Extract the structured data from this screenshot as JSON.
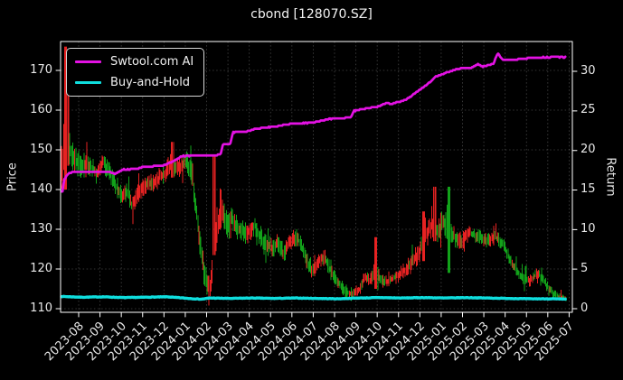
{
  "chart_data": {
    "type": "mixed",
    "title": "cbond [128070.SZ]",
    "grid": true,
    "legend_position": "upper left",
    "background": "#000000",
    "x_axis": {
      "tick_labels": [
        "2023-08",
        "2023-09",
        "2023-10",
        "2023-11",
        "2023-12",
        "2024-01",
        "2024-02",
        "2024-03",
        "2024-04",
        "2024-05",
        "2024-06",
        "2024-07",
        "2024-08",
        "2024-09",
        "2024-10",
        "2024-11",
        "2024-12",
        "2025-01",
        "2025-02",
        "2025-03",
        "2025-04",
        "2025-05",
        "2025-06",
        "2025-07"
      ]
    },
    "left_axis": {
      "label": "Price",
      "ticks": [
        110,
        120,
        130,
        140,
        150,
        160,
        170
      ],
      "range": [
        109.1,
        177.5
      ]
    },
    "right_axis": {
      "label": "Return",
      "ticks": [
        0,
        5,
        10,
        15,
        20,
        25,
        30
      ],
      "range": [
        -0.5,
        33.8
      ]
    },
    "series": [
      {
        "name": "price-daily-bars",
        "axis": "left",
        "type": "bars",
        "color_up": "#e62222",
        "color_down": "#12a21a",
        "monthly_summary": {
          "months": [
            "2023-08",
            "2023-09",
            "2023-10",
            "2023-11",
            "2023-12",
            "2024-01",
            "2024-02",
            "2024-03",
            "2024-04",
            "2024-05",
            "2024-06",
            "2024-07",
            "2024-08",
            "2024-09",
            "2024-10",
            "2024-11",
            "2024-12",
            "2025-01",
            "2025-02",
            "2025-03",
            "2025-04",
            "2025-05",
            "2025-06",
            "2025-07"
          ],
          "low": [
            139,
            141,
            134,
            133,
            138,
            131,
            113,
            124,
            125,
            123,
            117,
            121,
            115,
            111.5,
            112,
            114,
            117,
            119,
            123,
            124,
            116,
            114,
            111.8,
            112
          ],
          "high": [
            176,
            151,
            150,
            145,
            147,
            152,
            149,
            141,
            137,
            133,
            132,
            131,
            126,
            120,
            128,
            122,
            136,
            141,
            134,
            131,
            129,
            123,
            118,
            114
          ],
          "close": [
            146,
            145,
            139,
            141,
            143,
            135,
            129,
            131,
            129,
            126,
            124,
            123,
            117,
            113,
            117,
            118,
            126,
            128,
            128,
            127,
            120,
            117,
            113,
            112.5
          ]
        },
        "render": {
          "bars_total": 497,
          "m_start": 0.045,
          "m_end": 23.7,
          "mid_path": [
            [
              0,
              143
            ],
            [
              0.15,
              150
            ],
            [
              0.25,
              158
            ],
            [
              0.45,
              150
            ],
            [
              0.7,
              147
            ],
            [
              1.0,
              146
            ],
            [
              1.4,
              146
            ],
            [
              1.7,
              144
            ],
            [
              2.0,
              147
            ],
            [
              2.3,
              144
            ],
            [
              2.6,
              141
            ],
            [
              2.9,
              138
            ],
            [
              3.1,
              140
            ],
            [
              3.35,
              136
            ],
            [
              3.6,
              139
            ],
            [
              3.9,
              141
            ],
            [
              4.4,
              142
            ],
            [
              4.9,
              144
            ],
            [
              5.2,
              147
            ],
            [
              5.5,
              145
            ],
            [
              5.9,
              148
            ],
            [
              6.15,
              144
            ],
            [
              6.35,
              135
            ],
            [
              6.55,
              126
            ],
            [
              6.75,
              118
            ],
            [
              6.95,
              114.5
            ],
            [
              7.1,
              119
            ],
            [
              7.25,
              127
            ],
            [
              7.4,
              131
            ],
            [
              7.6,
              134
            ],
            [
              7.8,
              131
            ],
            [
              8.0,
              133
            ],
            [
              8.3,
              130
            ],
            [
              8.7,
              129
            ],
            [
              9.1,
              131
            ],
            [
              9.4,
              128
            ],
            [
              9.7,
              126
            ],
            [
              10.0,
              125
            ],
            [
              10.15,
              127
            ],
            [
              10.45,
              124
            ],
            [
              10.8,
              127
            ],
            [
              11.1,
              128
            ],
            [
              11.5,
              123
            ],
            [
              11.8,
              119
            ],
            [
              12.1,
              122
            ],
            [
              12.4,
              123
            ],
            [
              12.7,
              119
            ],
            [
              13.0,
              117
            ],
            [
              13.3,
              114.5
            ],
            [
              13.7,
              113.5
            ],
            [
              14.0,
              114.5
            ],
            [
              14.25,
              118
            ],
            [
              14.5,
              117
            ],
            [
              14.75,
              120
            ],
            [
              15.0,
              117
            ],
            [
              15.4,
              117
            ],
            [
              16.0,
              119
            ],
            [
              16.4,
              121
            ],
            [
              16.8,
              124
            ],
            [
              17.1,
              128
            ],
            [
              17.4,
              131
            ],
            [
              17.7,
              130
            ],
            [
              18.0,
              132
            ],
            [
              18.2,
              130
            ],
            [
              18.5,
              128
            ],
            [
              18.8,
              127
            ],
            [
              19.2,
              129
            ],
            [
              19.6,
              128
            ],
            [
              20.0,
              127
            ],
            [
              20.4,
              128
            ],
            [
              20.8,
              126
            ],
            [
              21.2,
              121
            ],
            [
              21.6,
              118
            ],
            [
              22.0,
              117
            ],
            [
              22.4,
              119
            ],
            [
              22.8,
              116
            ],
            [
              23.1,
              114
            ],
            [
              23.4,
              113
            ],
            [
              23.7,
              112.5
            ]
          ],
          "amp_path": [
            [
              0,
              8
            ],
            [
              0.3,
              6
            ],
            [
              0.6,
              3.5
            ],
            [
              1.5,
              2.5
            ],
            [
              3,
              2.5
            ],
            [
              4.5,
              2.3
            ],
            [
              5.5,
              2.6
            ],
            [
              6.3,
              3.0
            ],
            [
              7.0,
              3.5
            ],
            [
              7.6,
              3.5
            ],
            [
              8.2,
              3.0
            ],
            [
              9,
              2.5
            ],
            [
              10,
              2.6
            ],
            [
              11,
              2.2
            ],
            [
              12,
              2.0
            ],
            [
              13,
              1.8
            ],
            [
              14,
              1.6
            ],
            [
              14.75,
              2.2
            ],
            [
              15.3,
              1.5
            ],
            [
              16,
              1.8
            ],
            [
              16.8,
              2.6
            ],
            [
              17.4,
              3.2
            ],
            [
              18.2,
              3.4
            ],
            [
              18.6,
              2.2
            ],
            [
              19.2,
              1.9
            ],
            [
              20.2,
              1.8
            ],
            [
              21,
              1.7
            ],
            [
              21.8,
              1.6
            ],
            [
              22.5,
              1.4
            ],
            [
              23.1,
              1.0
            ],
            [
              23.7,
              0.7
            ]
          ],
          "events": [
            {
              "m": [
                0.17,
                0.3
              ],
              "low": 140,
              "high": 176,
              "dir": "up"
            },
            {
              "m": [
                0.3,
                0.4
              ],
              "low": 146,
              "high": 168,
              "dir": "up"
            },
            {
              "m": [
                5.15,
                5.3
              ],
              "low": 143,
              "high": 152,
              "dir": "up"
            },
            {
              "m": [
                7.15,
                7.27
              ],
              "low": 123.5,
              "high": 148.5,
              "dir": "up"
            },
            {
              "m": [
                14.7,
                14.85
              ],
              "low": 115,
              "high": 128,
              "dir": "up"
            },
            {
              "m": [
                16.95,
                17.08
              ],
              "low": 122,
              "high": 134.5,
              "dir": "up"
            },
            {
              "m": [
                17.5,
                17.63
              ],
              "low": 127,
              "high": 140.7,
              "dir": "up"
            },
            {
              "m": [
                18.15,
                18.28
              ],
              "low": 119,
              "high": 140.7,
              "dir": "down"
            }
          ]
        }
      },
      {
        "name": "Swtool.com AI",
        "axis": "right",
        "type": "line",
        "color": "#e312e3",
        "start_value": 14.8,
        "monthly_values": [
          17.3,
          17.3,
          17.5,
          17.95,
          18.1,
          19.3,
          19.4,
          20.85,
          22.6,
          22.95,
          23.4,
          23.55,
          24.05,
          25.1,
          25.5,
          26.2,
          27.7,
          29.6,
          30.4,
          30.6,
          31.45,
          31.65,
          31.78,
          31.8
        ],
        "keyframes": [
          [
            0,
            14.8
          ],
          [
            0.1,
            14.85
          ],
          [
            0.16,
            16.3
          ],
          [
            0.4,
            17.2
          ],
          [
            1.0,
            17.3
          ],
          [
            2.3,
            17.3
          ],
          [
            2.55,
            17.0
          ],
          [
            2.9,
            17.6
          ],
          [
            3.6,
            17.65
          ],
          [
            3.85,
            17.95
          ],
          [
            4.8,
            18.05
          ],
          [
            5.3,
            18.65
          ],
          [
            5.7,
            19.3
          ],
          [
            6.4,
            19.35
          ],
          [
            7.5,
            19.45
          ],
          [
            7.62,
            20.8
          ],
          [
            7.95,
            20.85
          ],
          [
            8.08,
            22.3
          ],
          [
            8.7,
            22.4
          ],
          [
            9.2,
            22.75
          ],
          [
            10.0,
            23.0
          ],
          [
            10.8,
            23.4
          ],
          [
            11.8,
            23.5
          ],
          [
            12.5,
            23.95
          ],
          [
            13.3,
            24.1
          ],
          [
            13.6,
            24.2
          ],
          [
            13.75,
            25.0
          ],
          [
            14.3,
            25.3
          ],
          [
            14.9,
            25.55
          ],
          [
            15.25,
            26.0
          ],
          [
            15.5,
            25.9
          ],
          [
            16.2,
            26.4
          ],
          [
            16.55,
            27.1
          ],
          [
            17.05,
            28.1
          ],
          [
            17.35,
            28.7
          ],
          [
            17.55,
            29.3
          ],
          [
            18.05,
            29.8
          ],
          [
            18.6,
            30.3
          ],
          [
            19.3,
            30.5
          ],
          [
            19.55,
            30.9
          ],
          [
            19.8,
            30.6
          ],
          [
            20.3,
            31.0
          ],
          [
            20.5,
            32.3
          ],
          [
            20.75,
            31.4
          ],
          [
            21.3,
            31.5
          ],
          [
            22.0,
            31.7
          ],
          [
            23.0,
            31.8
          ],
          [
            23.7,
            31.8
          ]
        ]
      },
      {
        "name": "Buy-and-Hold",
        "axis": "right",
        "type": "line",
        "color": "#0fdede",
        "monthly_values": [
          1.5,
          1.45,
          1.5,
          1.4,
          1.45,
          1.5,
          1.3,
          1.35,
          1.3,
          1.35,
          1.3,
          1.35,
          1.3,
          1.25,
          1.35,
          1.4,
          1.35,
          1.4,
          1.35,
          1.4,
          1.35,
          1.3,
          1.25,
          1.2
        ],
        "keyframes": [
          [
            0,
            1.55
          ],
          [
            1,
            1.45
          ],
          [
            2,
            1.5
          ],
          [
            3,
            1.4
          ],
          [
            4,
            1.45
          ],
          [
            5,
            1.5
          ],
          [
            6,
            1.3
          ],
          [
            6.6,
            1.2
          ],
          [
            7,
            1.35
          ],
          [
            8,
            1.3
          ],
          [
            9,
            1.35
          ],
          [
            10,
            1.3
          ],
          [
            11,
            1.35
          ],
          [
            12,
            1.3
          ],
          [
            13,
            1.25
          ],
          [
            14,
            1.35
          ],
          [
            15,
            1.4
          ],
          [
            16,
            1.35
          ],
          [
            17,
            1.4
          ],
          [
            18,
            1.35
          ],
          [
            19,
            1.4
          ],
          [
            20,
            1.35
          ],
          [
            21,
            1.3
          ],
          [
            22,
            1.25
          ],
          [
            23,
            1.25
          ],
          [
            23.7,
            1.2
          ]
        ]
      }
    ],
    "style": {
      "grid_color": "#9a9a9a",
      "border_color": "#ffffff",
      "text_color": "#e8e8e8"
    }
  }
}
